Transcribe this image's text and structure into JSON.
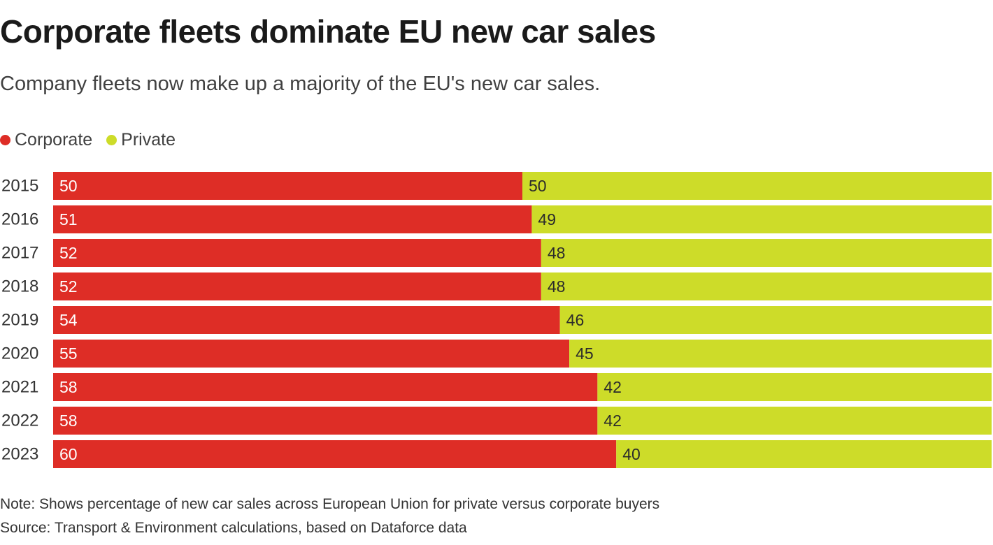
{
  "title": "Corporate fleets dominate EU new car sales",
  "subtitle": "Company fleets now make up a majority of the EU's new car sales.",
  "note": "Note: Shows percentage of new car sales across European Union for private versus corporate buyers",
  "source": "Source: Transport & Environment calculations, based on Dataforce data",
  "chart_data": {
    "type": "bar",
    "orientation": "horizontal",
    "stacked": true,
    "title": "Corporate fleets dominate EU new car sales",
    "subtitle": "Company fleets now make up a majority of the EU's new car sales.",
    "xlabel": "",
    "ylabel": "",
    "xlim": [
      0,
      100
    ],
    "grid": false,
    "legend_position": "top-left",
    "categories": [
      "2015",
      "2016",
      "2017",
      "2018",
      "2019",
      "2020",
      "2021",
      "2022",
      "2023"
    ],
    "series": [
      {
        "name": "Corporate",
        "color": "#de2d26",
        "label_color": "#ffffff",
        "values": [
          50,
          51,
          52,
          52,
          54,
          55,
          58,
          58,
          60
        ]
      },
      {
        "name": "Private",
        "color": "#cddc29",
        "label_color": "#2b2b2b",
        "values": [
          50,
          49,
          48,
          48,
          46,
          45,
          42,
          42,
          40
        ]
      }
    ]
  }
}
